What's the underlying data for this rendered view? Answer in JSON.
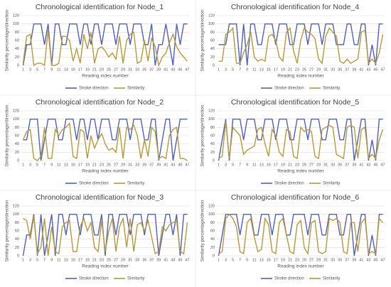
{
  "chart_data": [
    {
      "type": "line",
      "title": "Chronological identification for Node_1",
      "x_label": "Reading index number",
      "y_label": "Similarity percentage/direction",
      "categories": [
        1,
        null,
        3,
        null,
        5,
        null,
        7,
        null,
        9,
        null,
        11,
        null,
        13,
        null,
        15,
        null,
        17,
        null,
        19,
        null,
        21,
        null,
        23,
        null,
        25,
        null,
        27,
        null,
        29,
        null,
        31,
        null,
        33,
        null,
        35,
        null,
        37,
        null,
        39,
        null,
        41,
        null,
        43,
        null,
        45,
        null,
        47
      ],
      "ylim": [
        0,
        120
      ],
      "yticks": [
        0,
        20,
        40,
        60,
        80,
        100,
        120
      ],
      "grid": true,
      "series": [
        {
          "name": "Stroke direction",
          "color": "#4f5fbf",
          "values": [
            0,
            50,
            50,
            100,
            100,
            100,
            50,
            100,
            0,
            100,
            100,
            50,
            50,
            100,
            100,
            100,
            50,
            100,
            100,
            50,
            100,
            100,
            50,
            100,
            100,
            100,
            50,
            100,
            100,
            100,
            50,
            100,
            100,
            100,
            50,
            50,
            100,
            0,
            50,
            50,
            100,
            50,
            0,
            100,
            50,
            100,
            100
          ]
        },
        {
          "name": "Similarity",
          "color": "#b59a35",
          "values": [
            5,
            70,
            75,
            0,
            5,
            5,
            0,
            85,
            0,
            0,
            5,
            70,
            70,
            60,
            10,
            40,
            5,
            75,
            40,
            80,
            5,
            40,
            45,
            35,
            20,
            30,
            15,
            70,
            5,
            60,
            75,
            80,
            5,
            10,
            60,
            10,
            65,
            45,
            0,
            20,
            30,
            55,
            75,
            45,
            30,
            20,
            10
          ]
        }
      ]
    },
    {
      "type": "line",
      "title": "Chronological identification for Node_4",
      "x_label": "Reading index number",
      "y_label": "Similarity percentage/direction",
      "categories": [
        1,
        null,
        3,
        null,
        5,
        null,
        7,
        null,
        9,
        null,
        11,
        null,
        13,
        null,
        15,
        null,
        17,
        null,
        19,
        null,
        21,
        null,
        23,
        null,
        25,
        null,
        27,
        null,
        29,
        null,
        31,
        null,
        33,
        null,
        35,
        null,
        37,
        null,
        39,
        null,
        41,
        null,
        43,
        null,
        45,
        null,
        47
      ],
      "ylim": [
        0,
        120
      ],
      "yticks": [
        0,
        20,
        40,
        60,
        80,
        100,
        120
      ],
      "grid": true,
      "series": [
        {
          "name": "Stroke direction",
          "color": "#4f5fbf",
          "values": [
            50,
            50,
            50,
            100,
            100,
            100,
            0,
            100,
            0,
            100,
            100,
            50,
            50,
            100,
            100,
            100,
            50,
            100,
            100,
            100,
            50,
            50,
            100,
            100,
            100,
            50,
            100,
            100,
            100,
            50,
            100,
            100,
            100,
            50,
            50,
            50,
            100,
            100,
            50,
            50,
            100,
            100,
            0,
            50,
            0,
            100,
            100
          ]
        },
        {
          "name": "Similarity",
          "color": "#b59a35",
          "values": [
            10,
            10,
            75,
            80,
            90,
            5,
            5,
            30,
            50,
            80,
            20,
            10,
            15,
            10,
            70,
            75,
            60,
            20,
            10,
            80,
            90,
            35,
            5,
            60,
            90,
            80,
            75,
            65,
            15,
            5,
            70,
            90,
            80,
            70,
            10,
            5,
            15,
            5,
            10,
            15,
            80,
            85,
            5,
            15,
            5,
            30,
            75
          ]
        }
      ]
    },
    {
      "type": "line",
      "title": "Chronological identification for Node_2",
      "x_label": "Reading index number",
      "y_label": "Similarity percentage/direction",
      "categories": [
        1,
        null,
        3,
        null,
        5,
        null,
        7,
        null,
        9,
        null,
        11,
        null,
        13,
        null,
        15,
        null,
        17,
        null,
        19,
        null,
        21,
        null,
        23,
        null,
        25,
        null,
        27,
        null,
        29,
        null,
        31,
        null,
        33,
        null,
        35,
        null,
        37,
        null,
        39,
        null,
        41,
        null,
        43,
        null,
        45,
        null,
        47
      ],
      "ylim": [
        0,
        120
      ],
      "yticks": [
        0,
        20,
        40,
        60,
        80,
        100,
        120
      ],
      "grid": true,
      "series": [
        {
          "name": "Stroke direction",
          "color": "#4f5fbf",
          "values": [
            50,
            50,
            100,
            100,
            100,
            0,
            50,
            100,
            100,
            100,
            50,
            50,
            100,
            100,
            100,
            50,
            100,
            100,
            50,
            100,
            100,
            50,
            100,
            100,
            100,
            50,
            50,
            100,
            100,
            100,
            50,
            100,
            100,
            100,
            50,
            50,
            100,
            100,
            0,
            50,
            100,
            100,
            0,
            50,
            100,
            100,
            100
          ]
        },
        {
          "name": "Similarity",
          "color": "#b59a35",
          "values": [
            50,
            70,
            75,
            5,
            0,
            10,
            80,
            5,
            5,
            75,
            60,
            75,
            80,
            90,
            10,
            5,
            75,
            70,
            5,
            60,
            30,
            50,
            65,
            40,
            25,
            30,
            20,
            80,
            5,
            80,
            75,
            85,
            60,
            5,
            50,
            10,
            80,
            70,
            5,
            10,
            5,
            60,
            75,
            80,
            5,
            5,
            0
          ]
        }
      ]
    },
    {
      "type": "line",
      "title": "Chronological identification for Node_5",
      "x_label": "Reading index number",
      "y_label": "Similarity percentage/direction",
      "categories": [
        1,
        null,
        3,
        null,
        5,
        null,
        7,
        null,
        9,
        null,
        11,
        null,
        13,
        null,
        15,
        null,
        17,
        null,
        19,
        null,
        21,
        null,
        23,
        null,
        25,
        null,
        27,
        null,
        29,
        null,
        31,
        null,
        33,
        null,
        35,
        null,
        37,
        null,
        39,
        null,
        41,
        null,
        43,
        null,
        45,
        null,
        47
      ],
      "ylim": [
        0,
        120
      ],
      "yticks": [
        0,
        20,
        40,
        60,
        80,
        100,
        120
      ],
      "grid": true,
      "series": [
        {
          "name": "Stroke direction",
          "color": "#4f5fbf",
          "values": [
            0,
            50,
            100,
            0,
            100,
            100,
            100,
            50,
            100,
            100,
            100,
            50,
            50,
            100,
            100,
            100,
            50,
            100,
            100,
            100,
            50,
            50,
            100,
            100,
            100,
            50,
            100,
            100,
            100,
            50,
            50,
            100,
            100,
            100,
            50,
            50,
            100,
            100,
            0,
            50,
            100,
            100,
            0,
            50,
            0,
            100,
            100
          ]
        },
        {
          "name": "Similarity",
          "color": "#b59a35",
          "values": [
            5,
            10,
            95,
            5,
            80,
            70,
            60,
            15,
            25,
            30,
            35,
            75,
            80,
            40,
            10,
            75,
            60,
            20,
            10,
            75,
            70,
            10,
            5,
            80,
            70,
            75,
            70,
            10,
            5,
            75,
            80,
            85,
            80,
            15,
            10,
            5,
            80,
            85,
            80,
            5,
            75,
            80,
            5,
            15,
            5,
            50,
            75
          ]
        }
      ]
    },
    {
      "type": "line",
      "title": "Chronological identification for Node_3",
      "x_label": "Reading index number",
      "y_label": "Similarity percentage/direction",
      "categories": [
        1,
        null,
        3,
        null,
        5,
        null,
        7,
        null,
        9,
        null,
        11,
        null,
        13,
        null,
        15,
        null,
        17,
        null,
        19,
        null,
        21,
        null,
        23,
        null,
        25,
        null,
        27,
        null,
        29,
        null,
        31,
        null,
        33,
        null,
        35,
        null,
        37,
        null,
        39,
        null,
        41,
        null,
        43,
        null,
        45,
        null,
        47
      ],
      "ylim": [
        0,
        120
      ],
      "yticks": [
        0,
        20,
        40,
        60,
        80,
        100,
        120
      ],
      "grid": true,
      "series": [
        {
          "name": "Stroke direction",
          "color": "#4f5fbf",
          "values": [
            0,
            50,
            50,
            100,
            0,
            100,
            0,
            50,
            100,
            0,
            100,
            100,
            50,
            100,
            100,
            100,
            50,
            100,
            100,
            100,
            50,
            50,
            100,
            0,
            100,
            100,
            50,
            100,
            100,
            100,
            50,
            100,
            100,
            100,
            50,
            100,
            100,
            100,
            0,
            50,
            100,
            100,
            50,
            100,
            0,
            100,
            100
          ]
        },
        {
          "name": "Similarity",
          "color": "#b59a35",
          "values": [
            90,
            85,
            40,
            95,
            5,
            20,
            90,
            0,
            70,
            10,
            5,
            70,
            80,
            85,
            10,
            10,
            70,
            90,
            60,
            80,
            20,
            10,
            85,
            10,
            60,
            90,
            10,
            70,
            90,
            20,
            90,
            10,
            75,
            80,
            60,
            85,
            45,
            5,
            10,
            70,
            60,
            75,
            80,
            85,
            10,
            5,
            80
          ]
        }
      ]
    },
    {
      "type": "line",
      "title": "Chronological identification for Node_6",
      "x_label": "Reading index number",
      "y_label": "Similarity percentage/direction",
      "categories": [
        1,
        null,
        3,
        null,
        5,
        null,
        7,
        null,
        9,
        null,
        11,
        null,
        13,
        null,
        15,
        null,
        17,
        null,
        19,
        null,
        21,
        null,
        23,
        null,
        25,
        null,
        27,
        null,
        29,
        null,
        31,
        null,
        33,
        null,
        35,
        null,
        37,
        null,
        39,
        null,
        41,
        null,
        43,
        null,
        45,
        null,
        47
      ],
      "ylim": [
        0,
        120
      ],
      "yticks": [
        0,
        20,
        40,
        60,
        80,
        100,
        120
      ],
      "grid": true,
      "series": [
        {
          "name": "Stroke direction",
          "color": "#4f5fbf",
          "values": [
            0,
            50,
            100,
            100,
            100,
            100,
            50,
            100,
            100,
            100,
            50,
            50,
            100,
            100,
            100,
            50,
            100,
            100,
            100,
            50,
            50,
            100,
            100,
            100,
            100,
            50,
            100,
            100,
            100,
            50,
            50,
            100,
            100,
            100,
            50,
            50,
            100,
            100,
            0,
            50,
            100,
            100,
            0,
            50,
            0,
            100,
            100
          ]
        },
        {
          "name": "Similarity",
          "color": "#b59a35",
          "values": [
            5,
            10,
            90,
            100,
            90,
            70,
            10,
            5,
            80,
            90,
            45,
            10,
            15,
            90,
            75,
            10,
            5,
            80,
            90,
            50,
            10,
            5,
            75,
            85,
            20,
            5,
            80,
            85,
            10,
            5,
            10,
            90,
            85,
            90,
            80,
            10,
            5,
            80,
            80,
            10,
            80,
            90,
            5,
            10,
            5,
            90,
            80
          ]
        }
      ]
    }
  ]
}
